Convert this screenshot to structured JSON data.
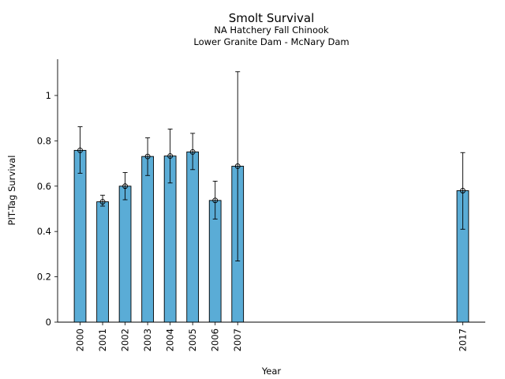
{
  "chart_data": {
    "type": "bar",
    "title": "Smolt Survival",
    "subtitle_lines": [
      "NA Hatchery Fall Chinook",
      "Lower Granite Dam - McNary Dam"
    ],
    "xlabel": "Year",
    "ylabel": "PIT-Tag Survival",
    "ylim": [
      0,
      1.16
    ],
    "yticks": [
      0,
      0.2,
      0.4,
      0.6,
      0.8,
      1
    ],
    "ytick_labels": [
      "0",
      "0.2",
      "0.4",
      "0.6",
      "0.8",
      "1"
    ],
    "xlim": [
      1999.0,
      2018.0
    ],
    "categories": [
      "2000",
      "2001",
      "2002",
      "2003",
      "2004",
      "2005",
      "2006",
      "2007",
      "2017"
    ],
    "x": [
      2000,
      2001,
      2002,
      2003,
      2004,
      2005,
      2006,
      2007,
      2017
    ],
    "values": [
      0.758,
      0.531,
      0.6,
      0.731,
      0.733,
      0.751,
      0.537,
      0.688,
      0.58
    ],
    "error_low": [
      0.657,
      0.512,
      0.54,
      0.647,
      0.614,
      0.673,
      0.455,
      0.27,
      0.41
    ],
    "error_high": [
      0.862,
      0.56,
      0.66,
      0.813,
      0.852,
      0.833,
      0.622,
      1.105,
      0.748
    ],
    "bar_color": "#5aacd6",
    "edge_color": "#000000",
    "grid": false
  }
}
